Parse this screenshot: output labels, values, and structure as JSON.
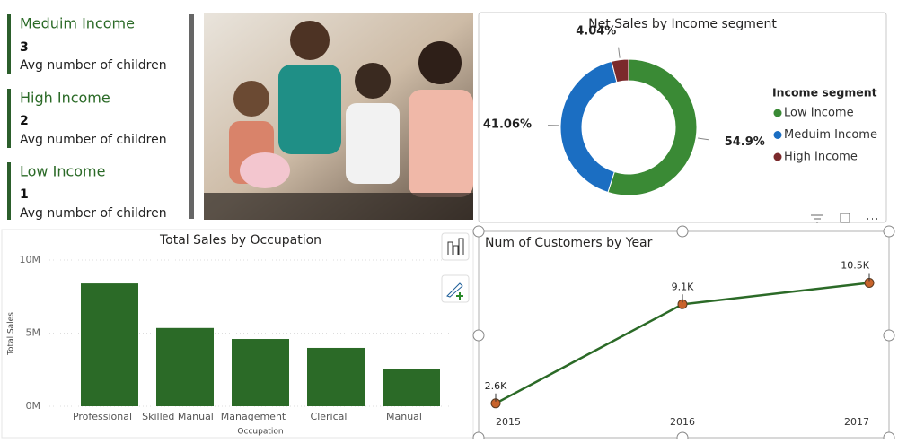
{
  "cards": [
    {
      "title": "Meduim Income",
      "value": 3,
      "label": "Avg number of children"
    },
    {
      "title": "High Income",
      "value": 2,
      "label": "Avg number of children"
    },
    {
      "title": "Low Income",
      "value": 1,
      "label": "Avg number of children"
    }
  ],
  "chart_data": [
    {
      "type": "donut",
      "title": "Net Sales by Income segment",
      "legend_title": "Income segment",
      "legend": "right",
      "categories": [
        "Low Income",
        "Meduim Income",
        "High Income"
      ],
      "values": [
        54.9,
        41.06,
        4.04
      ],
      "value_labels": [
        "54.9%",
        "41.06%",
        "4.04%"
      ],
      "colors": [
        "#3a8a35",
        "#1b6ec2",
        "#7b2a2c"
      ]
    },
    {
      "type": "bar",
      "title": "Total Sales by Occupation",
      "x_label": "Occupation",
      "y_label": "Total Sales",
      "categories": [
        "Professional",
        "Skilled Manual",
        "Management",
        "Clerical",
        "Manual"
      ],
      "values": [
        8400000,
        5350000,
        4600000,
        3990000,
        2520000
      ],
      "color": "#2b6a27",
      "ylim": [
        0,
        10000000
      ],
      "yticks": [
        {
          "value": 0,
          "label": "0M"
        },
        {
          "value": 5000000,
          "label": "5M"
        },
        {
          "value": 10000000,
          "label": "10M"
        }
      ]
    },
    {
      "type": "line",
      "title": "Num of Customers by Year",
      "categories": [
        "2015",
        "2016",
        "2017"
      ],
      "values": [
        2600,
        9100,
        10500
      ],
      "value_labels": [
        "2.6K",
        "9.1K",
        "10.5K"
      ],
      "color": "#2b6a27",
      "marker_color": "#c8632b",
      "ylim": [
        0,
        12000
      ]
    }
  ]
}
